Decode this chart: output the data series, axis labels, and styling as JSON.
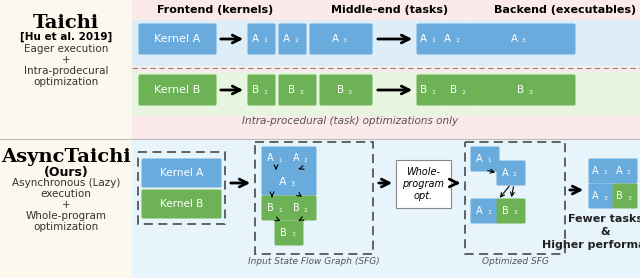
{
  "fig_width": 6.4,
  "fig_height": 2.78,
  "blue": "#6aabde",
  "green": "#6db356",
  "bg_cream": "#fdf8ee",
  "bg_blue_light": "#e8f4fb",
  "bg_pink": "#fce9e9",
  "bg_row_blue": "#ddeef8",
  "bg_row_green": "#e8f5e0",
  "dash_color": "#555555",
  "title_top": "Taichi",
  "subtitle_top": "[Hu et al. 2019]",
  "desc_top_lines": [
    "Eager execution",
    "+",
    "Intra-prodecural",
    "optimization"
  ],
  "title_bottom": "AsyncTaichi",
  "subtitle_bottom": "(Ours)",
  "desc_bottom_lines": [
    "Asynchronous (Lazy)",
    "execution",
    "+",
    "Whole-program",
    "optimization"
  ],
  "header_frontend": "Frontend (kernels)",
  "header_middle": "Middle-end (tasks)",
  "header_backend": "Backend (executables)",
  "label_intra": "Intra-procedural (task) optimizations only",
  "label_fewer": "Fewer tasks\n&\nHigher performance",
  "label_whole": "Whole-\nprogram\nopt.",
  "label_sfg_input": "Input State Flow Graph (SFG)",
  "label_sfg_opt": "Optimized SFG"
}
